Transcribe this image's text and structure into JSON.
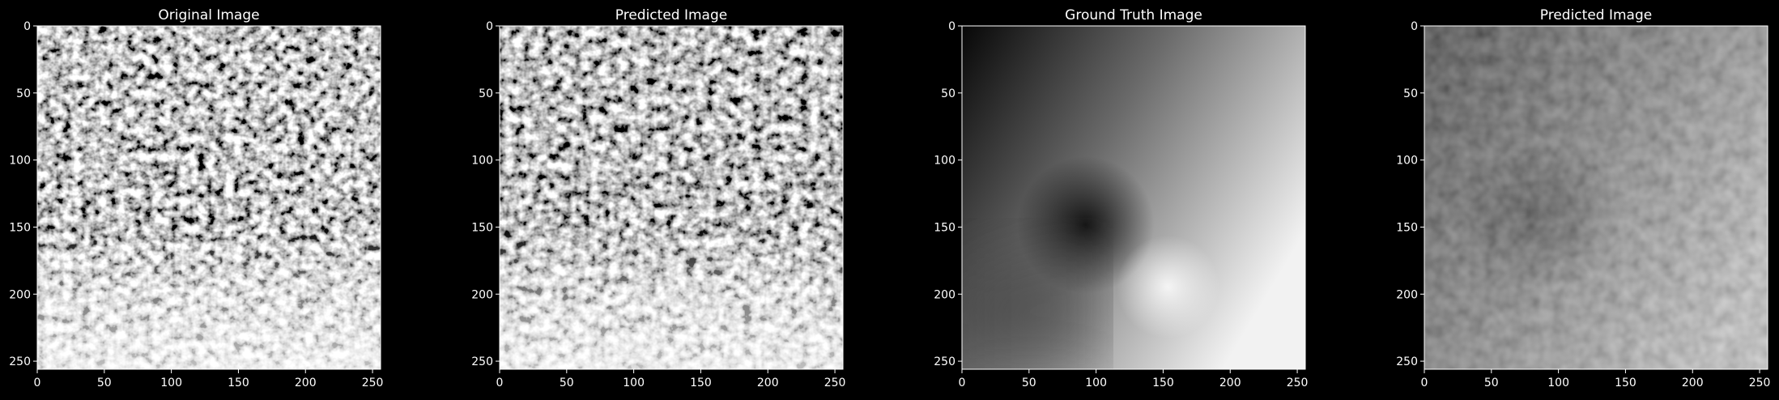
{
  "figure": {
    "background": "#000000",
    "text_color": "#ffffff",
    "panels": [
      {
        "title": "Original Image",
        "image": "noisy-tissue-texture",
        "xticks": [
          "0",
          "50",
          "100",
          "150",
          "200",
          "250"
        ],
        "yticks": [
          "0",
          "50",
          "100",
          "150",
          "200",
          "250"
        ]
      },
      {
        "title": "Predicted Image",
        "image": "noisy-tissue-texture",
        "xticks": [
          "0",
          "50",
          "100",
          "150",
          "200",
          "250"
        ],
        "yticks": [
          "0",
          "50",
          "100",
          "150",
          "200",
          "250"
        ]
      },
      {
        "title": "Ground Truth Image",
        "image": "smooth-angular-gradient",
        "xticks": [
          "0",
          "50",
          "100",
          "150",
          "200",
          "250"
        ],
        "yticks": [
          "0",
          "50",
          "100",
          "150",
          "200",
          "250"
        ]
      },
      {
        "title": "Predicted Image",
        "image": "blurry-noisy-gradient",
        "xticks": [
          "0",
          "50",
          "100",
          "150",
          "200",
          "250"
        ],
        "yticks": [
          "0",
          "50",
          "100",
          "150",
          "200",
          "250"
        ]
      }
    ]
  }
}
